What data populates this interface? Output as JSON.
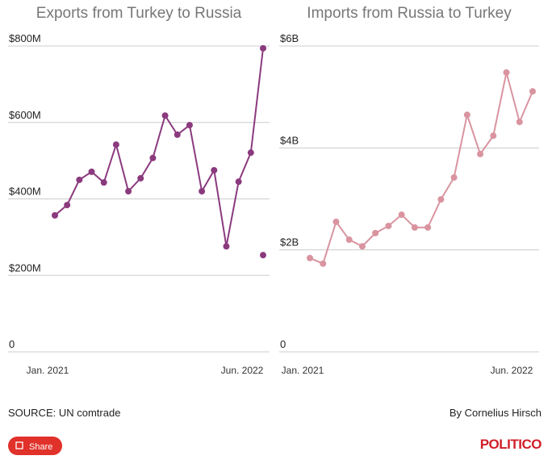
{
  "chart_data": [
    {
      "type": "line",
      "title": "Exports from Turkey to Russia",
      "categories": [
        "Jan. 2021",
        null,
        null,
        null,
        null,
        null,
        null,
        null,
        null,
        null,
        null,
        null,
        null,
        null,
        null,
        null,
        null,
        "Jun. 2022"
      ],
      "series": [
        {
          "color": "#8b3a7e",
          "values": [
            357,
            384,
            450,
            471,
            443,
            542,
            420,
            454,
            507,
            618,
            568,
            593,
            420,
            475,
            276,
            445,
            521,
            794
          ]
        },
        {
          "color": "#8b3a7e",
          "line": false,
          "values": [
            null,
            null,
            null,
            null,
            null,
            null,
            null,
            null,
            null,
            null,
            null,
            null,
            null,
            null,
            null,
            null,
            null,
            253
          ]
        }
      ],
      "ylim": [
        0,
        800
      ],
      "yticks": [
        0,
        {
          "value": 200,
          "label": "$200M"
        },
        {
          "value": 400,
          "label": "$400M"
        },
        {
          "value": 600,
          "label": "$600M"
        },
        {
          "value": 800,
          "label": "$800M"
        }
      ],
      "grid": true
    },
    {
      "type": "line",
      "title": "Imports from Russia to Turkey",
      "categories": [
        "Jan. 2021",
        null,
        null,
        null,
        null,
        null,
        null,
        null,
        null,
        null,
        null,
        null,
        null,
        null,
        null,
        null,
        null,
        "Jun. 2022"
      ],
      "series": [
        {
          "color": "#d994a0",
          "values": [
            1.84,
            1.73,
            2.55,
            2.2,
            2.07,
            2.33,
            2.47,
            2.69,
            2.44,
            2.44,
            2.99,
            3.42,
            4.65,
            3.88,
            4.24,
            5.48,
            4.51,
            5.11
          ]
        }
      ],
      "ylim": [
        0,
        6
      ],
      "yticks": [
        0,
        {
          "value": 2,
          "label": "$2B"
        },
        {
          "value": 4,
          "label": "$4B"
        },
        {
          "value": 6,
          "label": "$6B"
        }
      ],
      "grid": true
    }
  ],
  "footer": {
    "source": "SOURCE: UN comtrade",
    "byline": "By Cornelius Hirsch",
    "share": "Share",
    "logo": "POLITICO"
  }
}
